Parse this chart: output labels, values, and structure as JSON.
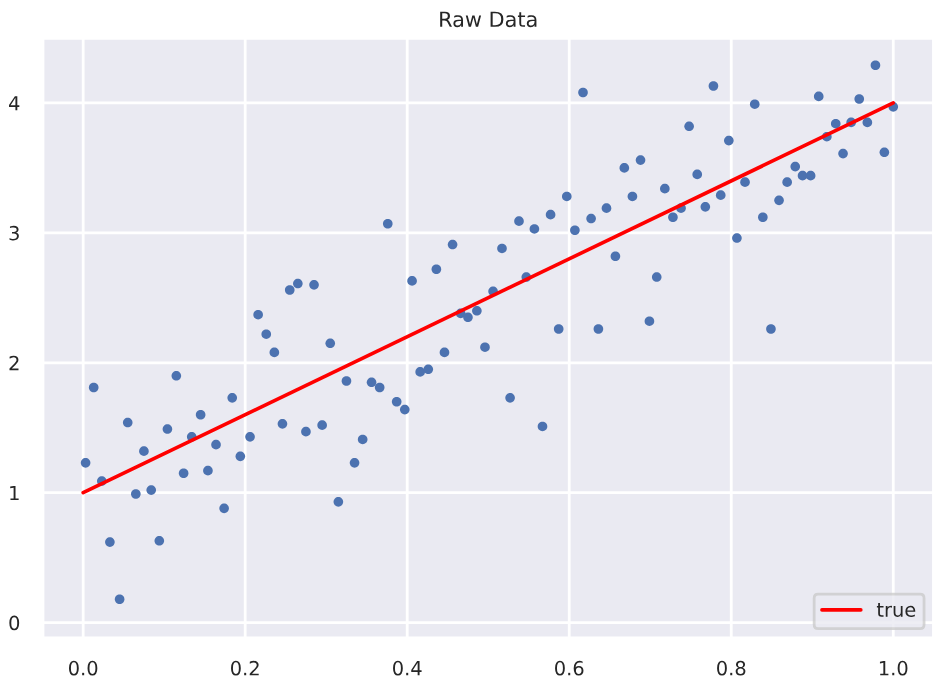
{
  "chart_data": {
    "type": "scatter",
    "title": "Raw Data",
    "xlim": [
      -0.05,
      1.05
    ],
    "ylim": [
      -0.12,
      4.5
    ],
    "xticks": [
      {
        "value": 0,
        "label": "0.0"
      },
      {
        "value": 0.2,
        "label": "0.2"
      },
      {
        "value": 0.4,
        "label": "0.4"
      },
      {
        "value": 0.6,
        "label": "0.6"
      },
      {
        "value": 0.8,
        "label": "0.8"
      },
      {
        "value": 1,
        "label": "1.0"
      }
    ],
    "yticks": [
      0,
      1,
      2,
      3,
      4
    ],
    "grid": true,
    "legend": "bottom right",
    "series": [
      {
        "color": "#4c72b0",
        "marker": "circle",
        "x": [
          0.003,
          0.013,
          0.023,
          0.033,
          0.045,
          0.055,
          0.065,
          0.075,
          0.084,
          0.094,
          0.104,
          0.115,
          0.124,
          0.134,
          0.145,
          0.154,
          0.164,
          0.174,
          0.184,
          0.194,
          0.206,
          0.216,
          0.226,
          0.236,
          0.246,
          0.255,
          0.265,
          0.275,
          0.285,
          0.295,
          0.305,
          0.315,
          0.325,
          0.335,
          0.345,
          0.356,
          0.366,
          0.376,
          0.387,
          0.397,
          0.406,
          0.416,
          0.426,
          0.436,
          0.446,
          0.456,
          0.466,
          0.475,
          0.486,
          0.496,
          0.506,
          0.517,
          0.527,
          0.538,
          0.547,
          0.557,
          0.567,
          0.577,
          0.587,
          0.597,
          0.607,
          0.617,
          0.627,
          0.636,
          0.646,
          0.657,
          0.668,
          0.678,
          0.688,
          0.699,
          0.708,
          0.718,
          0.728,
          0.738,
          0.748,
          0.758,
          0.768,
          0.778,
          0.787,
          0.797,
          0.807,
          0.817,
          0.829,
          0.839,
          0.849,
          0.859,
          0.869,
          0.879,
          0.888,
          0.898,
          0.908,
          0.918,
          0.929,
          0.938,
          0.948,
          0.958,
          0.968,
          0.978,
          0.989,
          1.0
        ],
        "values": [
          1.23,
          1.81,
          1.09,
          0.62,
          0.18,
          1.54,
          0.99,
          1.32,
          1.02,
          0.63,
          1.49,
          1.9,
          1.15,
          1.43,
          1.6,
          1.17,
          1.37,
          0.88,
          1.73,
          1.28,
          1.43,
          2.37,
          2.22,
          2.08,
          1.53,
          2.56,
          2.61,
          1.47,
          2.6,
          1.52,
          2.15,
          0.93,
          1.86,
          1.23,
          1.41,
          1.85,
          1.81,
          3.07,
          1.7,
          1.64,
          2.63,
          1.93,
          1.95,
          2.72,
          2.08,
          2.91,
          2.38,
          2.35,
          2.4,
          2.12,
          2.55,
          2.88,
          1.73,
          3.09,
          2.66,
          3.03,
          1.51,
          3.14,
          2.26,
          3.28,
          3.02,
          4.08,
          3.11,
          2.26,
          3.19,
          2.82,
          3.5,
          3.28,
          3.56,
          2.32,
          2.66,
          3.34,
          3.12,
          3.19,
          3.82,
          3.45,
          3.2,
          4.13,
          3.29,
          3.71,
          2.96,
          3.39,
          3.99,
          3.12,
          2.26,
          3.25,
          3.39,
          3.51,
          3.44,
          3.44,
          4.05,
          3.74,
          3.84,
          3.61,
          3.85,
          4.03,
          3.85,
          4.29,
          3.62,
          3.97
        ]
      },
      {
        "type": "line",
        "name": "true",
        "color": "#ff0000",
        "x": [
          0,
          1
        ],
        "values": [
          1,
          4
        ],
        "line_style": "solid"
      }
    ]
  }
}
